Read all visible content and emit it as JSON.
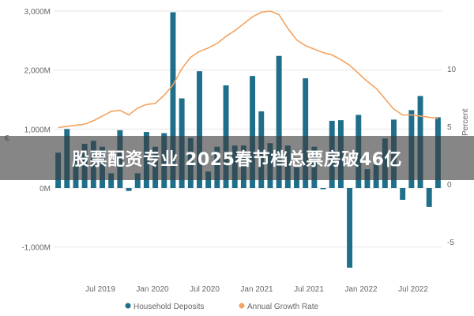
{
  "banner": {
    "text": "股票配资专业 2025春节档总票房破46亿"
  },
  "colors": {
    "bar": "#1f6f8b",
    "line": "#f4a361",
    "grid": "#e6e6e6",
    "axis_text": "#666666"
  },
  "chart_data": {
    "type": "bar+line",
    "left_axis": {
      "min": -1500,
      "max": 3000,
      "ticks": [
        -1000,
        0,
        1000,
        2000,
        3000
      ],
      "tick_labels": [
        "-1,000M",
        "0M",
        "1,000M",
        "2,000M",
        "3,000M"
      ],
      "label": "€"
    },
    "right_axis": {
      "min": -8,
      "max": 15,
      "ticks": [
        -5,
        0,
        5,
        10
      ],
      "tick_labels": [
        "-5",
        "0",
        "5",
        "10"
      ],
      "label": "Percent"
    },
    "x_tick_labels": [
      "Jul 2019",
      "Jan 2020",
      "Jul 2020",
      "Jan 2021",
      "Jul 2021",
      "Jan 2022",
      "Jul 2022"
    ],
    "legend": [
      "Household Deposits",
      "Annual Growth Rate"
    ],
    "series": [
      {
        "name": "Household Deposits",
        "type": "bar",
        "values": [
          600,
          1000,
          600,
          750,
          800,
          700,
          250,
          980,
          -50,
          250,
          950,
          700,
          930,
          2980,
          1520,
          850,
          1980,
          280,
          700,
          1740,
          720,
          720,
          1900,
          1300,
          760,
          2240,
          720,
          350,
          1860,
          700,
          -20,
          1140,
          1150,
          -1350,
          1240,
          320,
          400,
          840,
          1160,
          -200,
          1320,
          1560,
          -320,
          1200
        ]
      },
      {
        "name": "Annual Growth Rate",
        "type": "line",
        "values": [
          4.9,
          5.0,
          5.1,
          5.2,
          5.5,
          5.9,
          6.3,
          6.4,
          6.0,
          6.6,
          6.9,
          7.0,
          7.7,
          8.6,
          10.0,
          11.0,
          11.5,
          11.8,
          12.2,
          12.8,
          13.3,
          13.9,
          14.5,
          14.9,
          15.0,
          14.7,
          13.5,
          12.5,
          12.0,
          11.7,
          11.4,
          11.2,
          10.8,
          10.3,
          9.6,
          8.9,
          8.3,
          7.4,
          6.5,
          6.0,
          6.0,
          5.9,
          5.8,
          5.7
        ]
      }
    ]
  }
}
